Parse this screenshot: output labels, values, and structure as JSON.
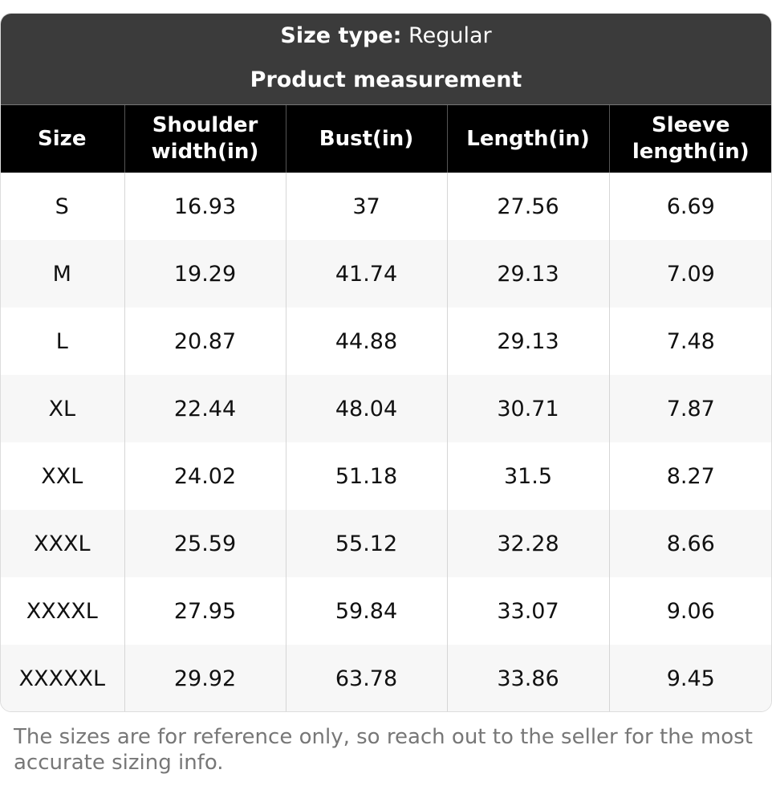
{
  "header": {
    "size_type_label": "Size type:",
    "size_type_value": "Regular",
    "subtitle": "Product measurement"
  },
  "table": {
    "columns": [
      "Size",
      "Shoulder width(in)",
      "Bust(in)",
      "Length(in)",
      "Sleeve length(in)"
    ],
    "column_lines": [
      [
        "Size"
      ],
      [
        "Shoulder",
        "width(in)"
      ],
      [
        "Bust(in)"
      ],
      [
        "Length(in)"
      ],
      [
        "Sleeve",
        "length(in)"
      ]
    ],
    "rows": [
      [
        "S",
        "16.93",
        "37",
        "27.56",
        "6.69"
      ],
      [
        "M",
        "19.29",
        "41.74",
        "29.13",
        "7.09"
      ],
      [
        "L",
        "20.87",
        "44.88",
        "29.13",
        "7.48"
      ],
      [
        "XL",
        "22.44",
        "48.04",
        "30.71",
        "7.87"
      ],
      [
        "XXL",
        "24.02",
        "51.18",
        "31.5",
        "8.27"
      ],
      [
        "XXXL",
        "25.59",
        "55.12",
        "32.28",
        "8.66"
      ],
      [
        "XXXXL",
        "27.95",
        "59.84",
        "33.07",
        "9.06"
      ],
      [
        "XXXXXL",
        "29.92",
        "63.78",
        "33.86",
        "9.45"
      ]
    ]
  },
  "footer": {
    "note": "The sizes are for reference only, so reach out to the seller for the most accurate sizing info."
  },
  "colors": {
    "title_band": "#3b3b3b",
    "header_row": "#000000",
    "stripe": "#f7f7f7",
    "note_text": "#777777"
  }
}
